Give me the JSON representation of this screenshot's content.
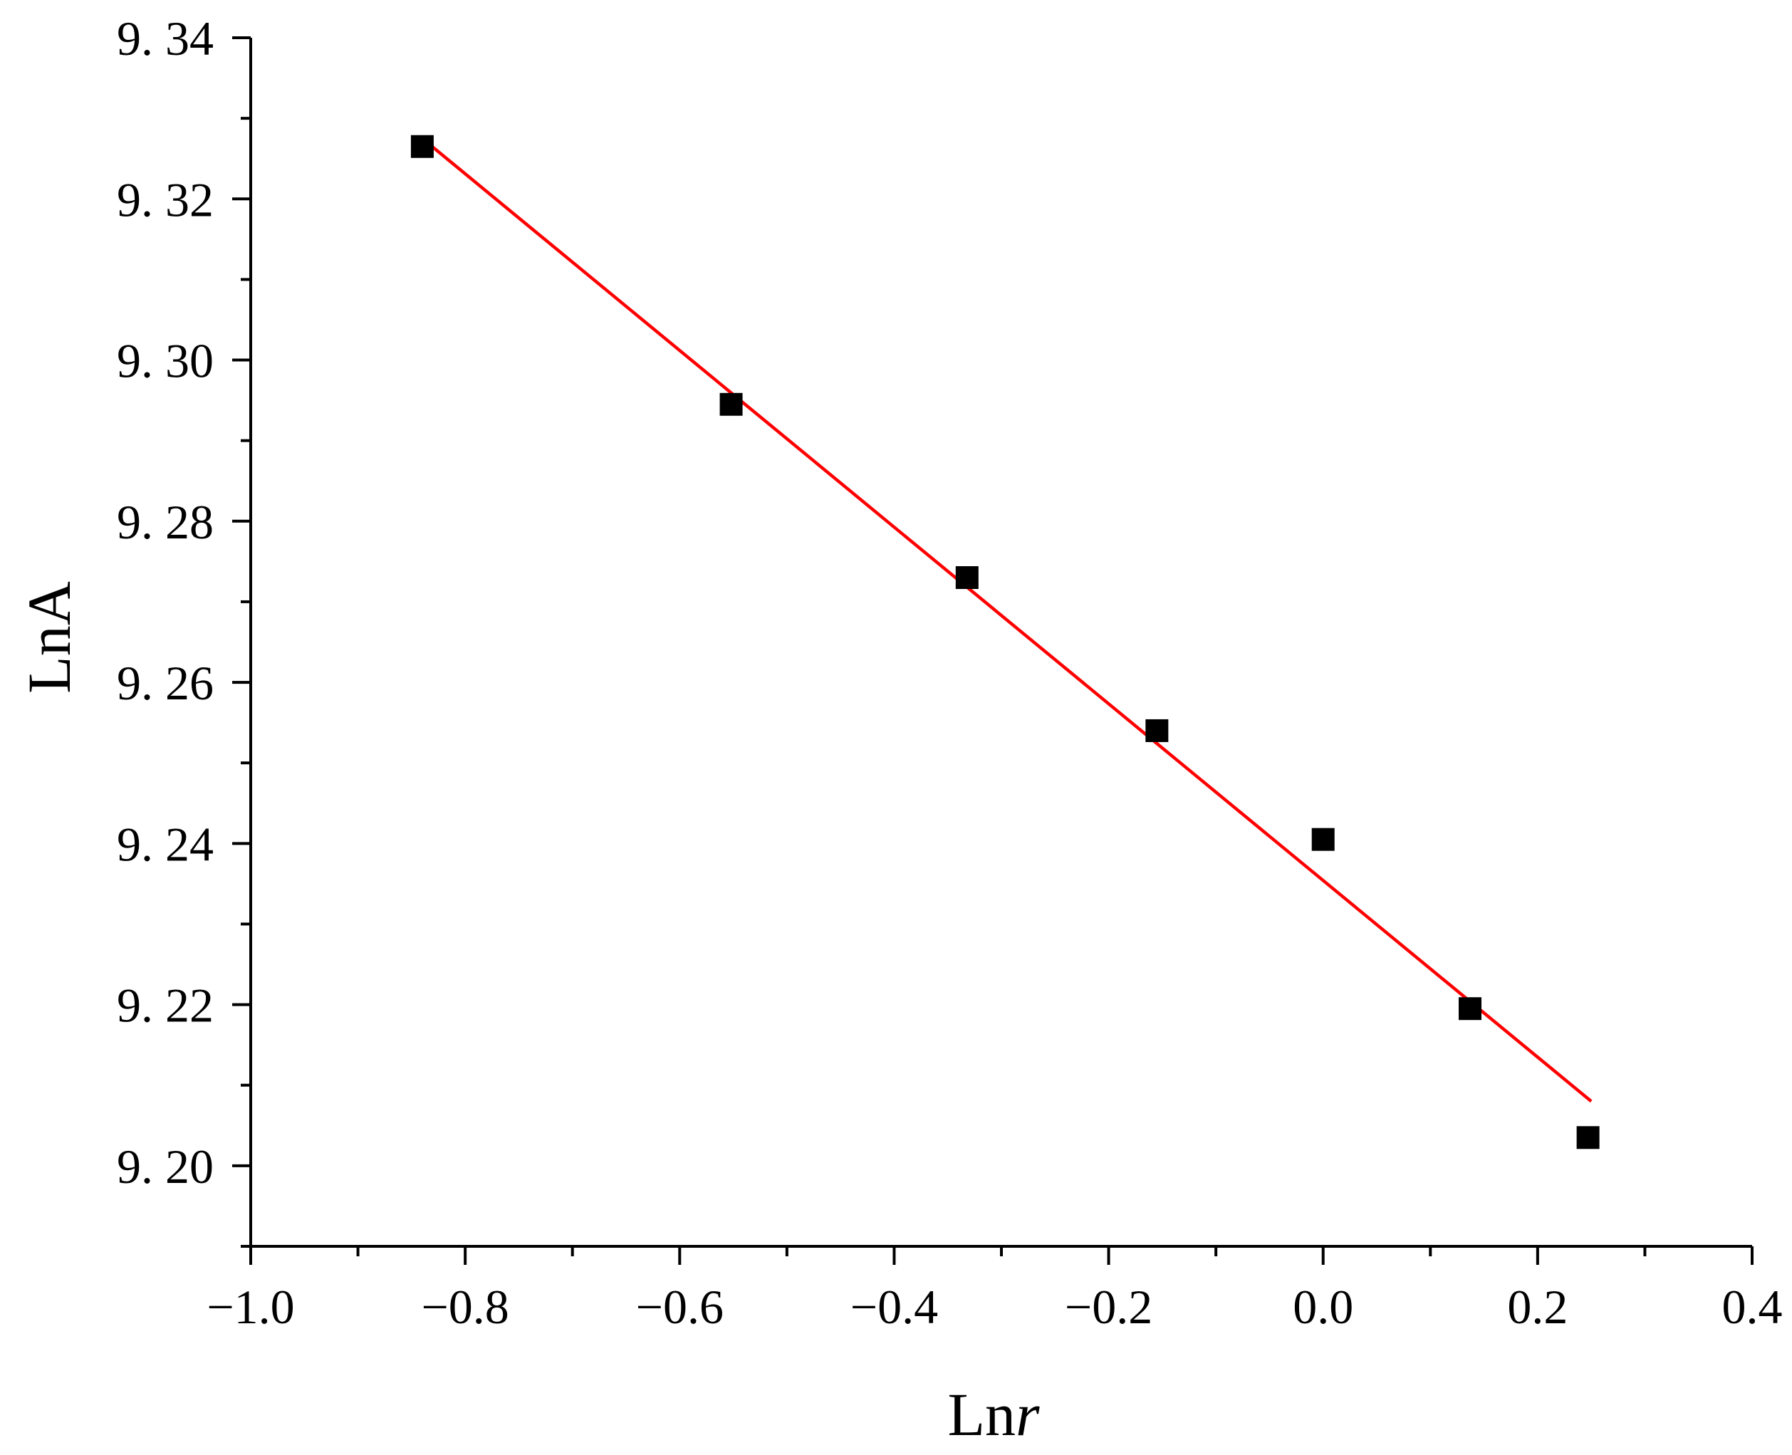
{
  "chart_data": {
    "type": "scatter",
    "xlabel_parts": [
      "Ln",
      "r"
    ],
    "ylabel": "LnA",
    "xlim": [
      -1.0,
      0.4
    ],
    "ylim": [
      9.19,
      9.34
    ],
    "x_ticks": [
      -1.0,
      -0.8,
      -0.6,
      -0.4,
      -0.2,
      0.0,
      0.2,
      0.4
    ],
    "x_tick_labels": [
      "−1.0",
      "−0.8",
      "−0.6",
      "−0.4",
      "−0.2",
      "0.0",
      "0.2",
      "0.4"
    ],
    "y_ticks": [
      9.2,
      9.22,
      9.24,
      9.26,
      9.28,
      9.3,
      9.32,
      9.34
    ],
    "y_tick_labels": [
      "9. 20",
      "9. 22",
      "9. 24",
      "9. 26",
      "9. 28",
      "9. 30",
      "9. 32",
      "9. 34"
    ],
    "series": [
      {
        "marker": "square",
        "color": "#000000",
        "x": [
          -0.84,
          -0.552,
          -0.332,
          -0.155,
          0.0,
          0.137,
          0.247
        ],
        "y": [
          9.3265,
          9.2945,
          9.273,
          9.254,
          9.2405,
          9.2195,
          9.2035
        ]
      }
    ],
    "fit_line": {
      "color": "#ff0000",
      "x": [
        -0.84,
        0.25
      ],
      "y": [
        9.3275,
        9.208
      ]
    },
    "grid": false
  }
}
